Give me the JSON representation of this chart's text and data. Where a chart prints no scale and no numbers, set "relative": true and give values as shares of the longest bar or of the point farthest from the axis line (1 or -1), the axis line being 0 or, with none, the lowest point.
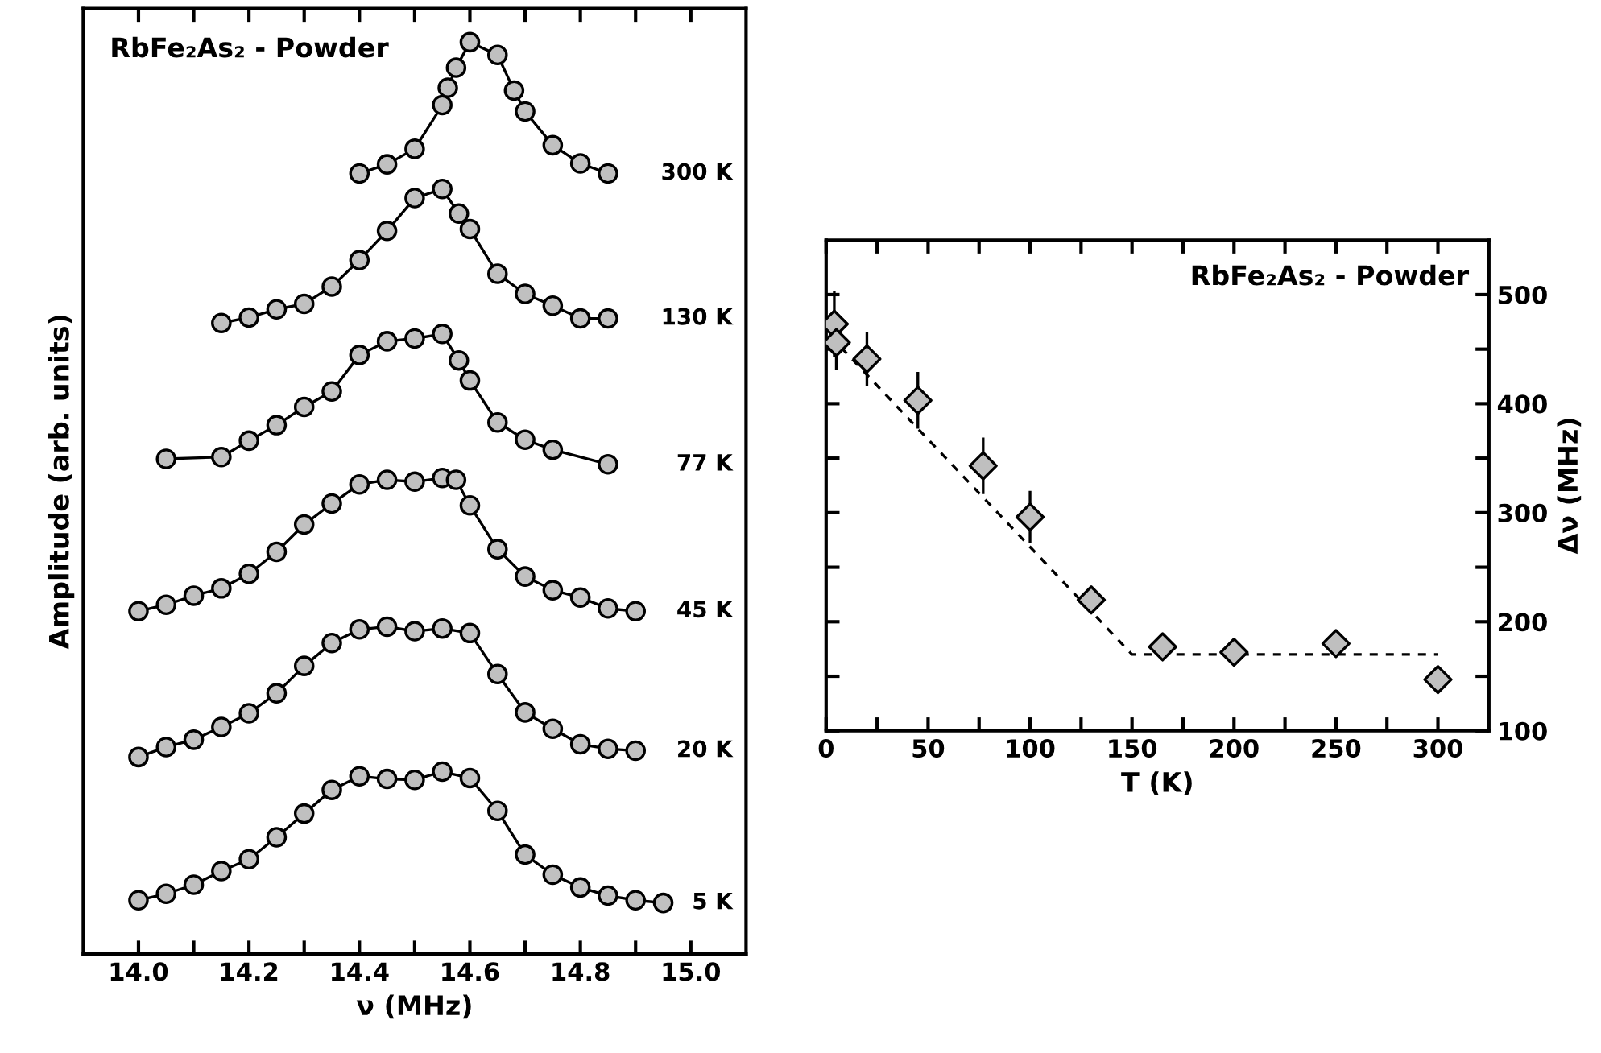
{
  "chart_data": [
    {
      "type": "line",
      "xlabel": "ν (MHz)",
      "ylabel": "Amplitude (arb. units)",
      "relative": true,
      "marker": "circle",
      "line_style": "solid",
      "legend": false,
      "grid": false,
      "xlim": [
        13.9,
        15.1
      ],
      "xticks": [
        {
          "value": 14.0,
          "label": "14.0"
        },
        {
          "value": 14.1,
          "label": null
        },
        {
          "value": 14.2,
          "label": "14.2"
        },
        {
          "value": 14.3,
          "label": null
        },
        {
          "value": 14.4,
          "label": "14.4"
        },
        {
          "value": 14.5,
          "label": null
        },
        {
          "value": 14.6,
          "label": "14.6"
        },
        {
          "value": 14.7,
          "label": null
        },
        {
          "value": 14.8,
          "label": "14.8"
        },
        {
          "value": 14.9,
          "label": null
        },
        {
          "value": 15.0,
          "label": "15.0"
        }
      ],
      "annotations": [
        "RbFe₂As₂ - Powder"
      ],
      "series": [
        {
          "name": "300 K",
          "color": "#000000",
          "x": [
            14.4,
            14.45,
            14.5,
            14.55,
            14.56,
            14.575,
            14.6,
            14.65,
            14.68,
            14.7,
            14.75,
            14.8,
            14.85
          ],
          "values": [
            0.856,
            0.866,
            0.883,
            0.931,
            0.95,
            0.972,
            1.0,
            0.986,
            0.947,
            0.924,
            0.887,
            0.867,
            0.856
          ]
        },
        {
          "name": "130 K",
          "color": "#000000",
          "x": [
            14.15,
            14.2,
            14.25,
            14.3,
            14.35,
            14.4,
            14.45,
            14.5,
            14.55,
            14.58,
            14.6,
            14.65,
            14.7,
            14.75,
            14.8,
            14.85
          ],
          "values": [
            0.692,
            0.698,
            0.707,
            0.713,
            0.732,
            0.761,
            0.793,
            0.829,
            0.839,
            0.812,
            0.795,
            0.746,
            0.724,
            0.711,
            0.697,
            0.697
          ]
        },
        {
          "name": "77 K",
          "color": "#000000",
          "x": [
            14.05,
            14.15,
            14.2,
            14.25,
            14.3,
            14.35,
            14.4,
            14.45,
            14.5,
            14.55,
            14.58,
            14.6,
            14.65,
            14.7,
            14.75,
            14.85
          ],
          "values": [
            0.543,
            0.545,
            0.563,
            0.58,
            0.6,
            0.617,
            0.657,
            0.672,
            0.675,
            0.68,
            0.651,
            0.629,
            0.583,
            0.564,
            0.553,
            0.537
          ]
        },
        {
          "name": "45 K",
          "color": "#000000",
          "x": [
            14.0,
            14.05,
            14.1,
            14.15,
            14.2,
            14.25,
            14.3,
            14.35,
            14.4,
            14.45,
            14.5,
            14.55,
            14.575,
            14.6,
            14.65,
            14.7,
            14.75,
            14.8,
            14.85,
            14.9
          ],
          "values": [
            0.376,
            0.383,
            0.393,
            0.401,
            0.417,
            0.441,
            0.471,
            0.494,
            0.515,
            0.52,
            0.518,
            0.522,
            0.52,
            0.492,
            0.444,
            0.414,
            0.399,
            0.391,
            0.379,
            0.376
          ]
        },
        {
          "name": "20 K",
          "color": "#000000",
          "x": [
            14.0,
            14.05,
            14.1,
            14.15,
            14.2,
            14.25,
            14.3,
            14.35,
            14.4,
            14.45,
            14.5,
            14.55,
            14.6,
            14.65,
            14.7,
            14.75,
            14.8,
            14.85,
            14.9
          ],
          "values": [
            0.216,
            0.227,
            0.235,
            0.249,
            0.264,
            0.286,
            0.316,
            0.341,
            0.356,
            0.359,
            0.354,
            0.357,
            0.352,
            0.307,
            0.265,
            0.247,
            0.23,
            0.225,
            0.223
          ]
        },
        {
          "name": "5 K",
          "color": "#000000",
          "x": [
            14.0,
            14.05,
            14.1,
            14.15,
            14.2,
            14.25,
            14.3,
            14.35,
            14.4,
            14.45,
            14.5,
            14.55,
            14.6,
            14.65,
            14.7,
            14.75,
            14.8,
            14.85,
            14.9,
            14.95
          ],
          "values": [
            0.059,
            0.066,
            0.076,
            0.091,
            0.104,
            0.128,
            0.154,
            0.18,
            0.195,
            0.192,
            0.191,
            0.2,
            0.193,
            0.157,
            0.109,
            0.087,
            0.073,
            0.064,
            0.059,
            0.056
          ]
        }
      ]
    },
    {
      "type": "scatter",
      "xlabel": "T (K)",
      "ylabel": "Δν (MHz)",
      "grid": false,
      "marker": "diamond",
      "xlim": [
        0,
        325
      ],
      "ylim": [
        100,
        550
      ],
      "xticks": [
        0,
        {
          "value": 25,
          "label": null
        },
        50,
        {
          "value": 75,
          "label": null
        },
        100,
        {
          "value": 125,
          "label": null
        },
        150,
        {
          "value": 175,
          "label": null
        },
        200,
        {
          "value": 225,
          "label": null
        },
        250,
        {
          "value": 275,
          "label": null
        },
        300
      ],
      "yticks": [
        100,
        {
          "value": 150,
          "label": null
        },
        200,
        {
          "value": 250,
          "label": null
        },
        300,
        {
          "value": 350,
          "label": null
        },
        400,
        {
          "value": 450,
          "label": null
        },
        500
      ],
      "annotations": [
        "RbFe₂As₂ - Powder"
      ],
      "series": [
        {
          "type": "scatter",
          "color": "#bfbfbf",
          "x": [
            4,
            5,
            20,
            45,
            77,
            100,
            130,
            165,
            200,
            250,
            300
          ],
          "values": [
            473,
            456,
            441,
            403,
            343,
            296,
            220,
            177,
            172,
            180,
            147
          ],
          "errors": [
            30,
            25,
            25,
            26,
            26,
            24,
            null,
            null,
            null,
            null,
            null
          ]
        },
        {
          "type": "line",
          "color": "#000000",
          "line_style": "dashed",
          "marker": "none",
          "x": [
            2,
            150,
            300
          ],
          "values": [
            462,
            170,
            170
          ]
        }
      ]
    }
  ]
}
